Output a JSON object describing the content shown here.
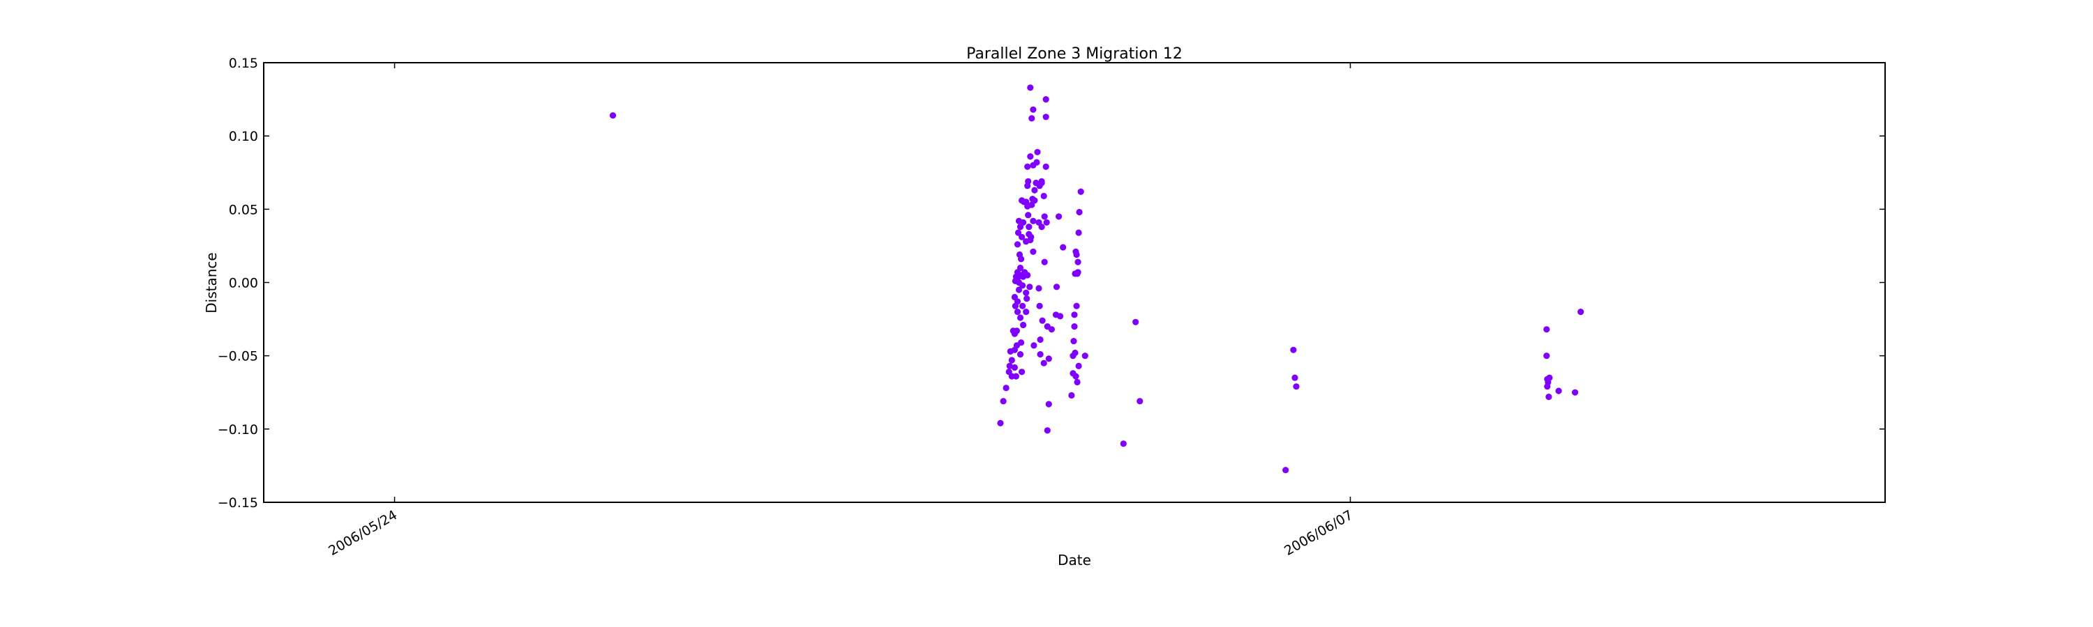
{
  "chart_data": {
    "type": "scatter",
    "title": "Parallel Zone 3 Migration 12",
    "xlabel": "Date",
    "ylabel": "Distance",
    "x_axis_type": "date",
    "xlim": [
      "2006-05-22T02:00",
      "2006-06-14T20:00"
    ],
    "ylim": [
      -0.15,
      0.15
    ],
    "y_ticks": [
      -0.15,
      -0.1,
      -0.05,
      0.0,
      0.05,
      0.1,
      0.15
    ],
    "y_tick_labels": [
      "−0.15",
      "−0.10",
      "−0.05",
      "0.00",
      "0.05",
      "0.10",
      "0.15"
    ],
    "x_ticks": [
      "2006-05-24",
      "2006-06-07"
    ],
    "x_tick_labels": [
      "2006/05/24",
      "2006/06/07"
    ],
    "grid": false,
    "marker_color": "#7f00ff",
    "points": [
      [
        "2006-05-27T04:45",
        0.114
      ],
      [
        "2006-06-01T21:00",
        -0.096
      ],
      [
        "2006-06-01T22:00",
        -0.081
      ],
      [
        "2006-06-01T23:00",
        -0.072
      ],
      [
        "2006-06-02T00:00",
        -0.061
      ],
      [
        "2006-06-02T00:15",
        -0.057
      ],
      [
        "2006-06-02T00:30",
        -0.047
      ],
      [
        "2006-06-02T01:00",
        -0.064
      ],
      [
        "2006-06-02T01:00",
        -0.053
      ],
      [
        "2006-06-02T01:30",
        -0.033
      ],
      [
        "2006-06-02T02:00",
        -0.058
      ],
      [
        "2006-06-02T02:00",
        -0.046
      ],
      [
        "2006-06-02T02:00",
        -0.035
      ],
      [
        "2006-06-02T02:00",
        -0.01
      ],
      [
        "2006-06-02T02:15",
        -0.016
      ],
      [
        "2006-06-02T02:15",
        0.001
      ],
      [
        "2006-06-02T02:30",
        0.004
      ],
      [
        "2006-06-02T02:30",
        -0.064
      ],
      [
        "2006-06-02T02:45",
        -0.043
      ],
      [
        "2006-06-02T02:45",
        -0.033
      ],
      [
        "2006-06-02T03:00",
        -0.02
      ],
      [
        "2006-06-02T03:00",
        -0.013
      ],
      [
        "2006-06-02T03:00",
        0.007
      ],
      [
        "2006-06-02T03:00",
        0.026
      ],
      [
        "2006-06-02T03:15",
        0.034
      ],
      [
        "2006-06-02T03:30",
        0.042
      ],
      [
        "2006-06-02T03:30",
        0.0
      ],
      [
        "2006-06-02T03:30",
        -0.005
      ],
      [
        "2006-06-02T03:30",
        0.004
      ],
      [
        "2006-06-02T03:45",
        0.019
      ],
      [
        "2006-06-02T04:00",
        -0.024
      ],
      [
        "2006-06-02T04:00",
        -0.049
      ],
      [
        "2006-06-02T04:00",
        0.01
      ],
      [
        "2006-06-02T04:00",
        0.038
      ],
      [
        "2006-06-02T04:15",
        -0.041
      ],
      [
        "2006-06-02T04:15",
        0.016
      ],
      [
        "2006-06-02T04:30",
        -0.061
      ],
      [
        "2006-06-02T04:30",
        0.056
      ],
      [
        "2006-06-02T04:30",
        0.031
      ],
      [
        "2006-06-02T04:30",
        0.005
      ],
      [
        "2006-06-02T04:45",
        -0.016
      ],
      [
        "2006-06-02T04:45",
        -0.002
      ],
      [
        "2006-06-02T05:00",
        0.004
      ],
      [
        "2006-06-02T05:00",
        0.041
      ],
      [
        "2006-06-02T05:00",
        -0.029
      ],
      [
        "2006-06-02T05:15",
        0.055
      ],
      [
        "2006-06-02T05:30",
        0.007
      ],
      [
        "2006-06-02T06:00",
        0.028
      ],
      [
        "2006-06-02T06:00",
        -0.02
      ],
      [
        "2006-06-02T06:00",
        0.055
      ],
      [
        "2006-06-02T06:00",
        -0.007
      ],
      [
        "2006-06-02T06:15",
        -0.011
      ],
      [
        "2006-06-02T06:30",
        0.005
      ],
      [
        "2006-06-02T06:30",
        0.052
      ],
      [
        "2006-06-02T06:30",
        0.066
      ],
      [
        "2006-06-02T06:30",
        0.079
      ],
      [
        "2006-06-02T06:45",
        0.046
      ],
      [
        "2006-06-02T06:45",
        0.069
      ],
      [
        "2006-06-02T07:00",
        0.033
      ],
      [
        "2006-06-02T07:00",
        0.038
      ],
      [
        "2006-06-02T07:15",
        -0.003
      ],
      [
        "2006-06-02T07:30",
        0.133
      ],
      [
        "2006-06-02T07:30",
        0.086
      ],
      [
        "2006-06-02T07:30",
        0.029
      ],
      [
        "2006-06-02T07:45",
        0.031
      ],
      [
        "2006-06-02T08:00",
        0.112
      ],
      [
        "2006-06-02T08:00",
        0.053
      ],
      [
        "2006-06-02T08:15",
        0.057
      ],
      [
        "2006-06-02T08:30",
        0.118
      ],
      [
        "2006-06-02T08:30",
        0.08
      ],
      [
        "2006-06-02T08:30",
        0.042
      ],
      [
        "2006-06-02T08:30",
        0.021
      ],
      [
        "2006-06-02T08:45",
        -0.043
      ],
      [
        "2006-06-02T09:00",
        0.063
      ],
      [
        "2006-06-02T09:00",
        0.056
      ],
      [
        "2006-06-02T09:30",
        0.068
      ],
      [
        "2006-06-02T09:45",
        0.082
      ],
      [
        "2006-06-02T10:00",
        0.089
      ],
      [
        "2006-06-02T10:30",
        -0.004
      ],
      [
        "2006-06-02T10:30",
        0.041
      ],
      [
        "2006-06-02T10:45",
        0.066
      ],
      [
        "2006-06-02T10:45",
        -0.016
      ],
      [
        "2006-06-02T11:00",
        -0.039
      ],
      [
        "2006-06-02T11:00",
        -0.049
      ],
      [
        "2006-06-02T11:30",
        0.069
      ],
      [
        "2006-06-02T11:30",
        0.068
      ],
      [
        "2006-06-02T11:30",
        0.038
      ],
      [
        "2006-06-02T11:45",
        -0.026
      ],
      [
        "2006-06-02T12:15",
        -0.055
      ],
      [
        "2006-06-02T12:15",
        0.059
      ],
      [
        "2006-06-02T12:30",
        0.014
      ],
      [
        "2006-06-02T12:30",
        0.045
      ],
      [
        "2006-06-02T13:00",
        0.125
      ],
      [
        "2006-06-02T13:00",
        0.113
      ],
      [
        "2006-06-02T13:00",
        0.079
      ],
      [
        "2006-06-02T13:15",
        0.041
      ],
      [
        "2006-06-02T13:30",
        -0.101
      ],
      [
        "2006-06-02T13:30",
        -0.03
      ],
      [
        "2006-06-02T14:00",
        -0.052
      ],
      [
        "2006-06-02T14:00",
        -0.083
      ],
      [
        "2006-06-02T15:00",
        -0.032
      ],
      [
        "2006-06-02T16:30",
        -0.022
      ],
      [
        "2006-06-02T16:45",
        -0.003
      ],
      [
        "2006-06-02T17:30",
        0.045
      ],
      [
        "2006-06-02T18:00",
        -0.023
      ],
      [
        "2006-06-02T19:00",
        0.024
      ],
      [
        "2006-06-02T22:00",
        -0.077
      ],
      [
        "2006-06-02T22:30",
        -0.062
      ],
      [
        "2006-06-02T22:30",
        -0.05
      ],
      [
        "2006-06-02T22:45",
        -0.04
      ],
      [
        "2006-06-02T23:00",
        -0.03
      ],
      [
        "2006-06-02T23:00",
        -0.022
      ],
      [
        "2006-06-02T23:15",
        -0.048
      ],
      [
        "2006-06-02T23:15",
        0.006
      ],
      [
        "2006-06-02T23:30",
        0.021
      ],
      [
        "2006-06-02T23:30",
        -0.064
      ],
      [
        "2006-06-02T23:45",
        0.019
      ],
      [
        "2006-06-02T23:45",
        -0.016
      ],
      [
        "2006-06-03T00:00",
        0.006
      ],
      [
        "2006-06-03T00:00",
        -0.068
      ],
      [
        "2006-06-03T00:15",
        0.014
      ],
      [
        "2006-06-03T00:15",
        0.007
      ],
      [
        "2006-06-03T00:30",
        -0.057
      ],
      [
        "2006-06-03T00:30",
        0.034
      ],
      [
        "2006-06-03T00:45",
        0.048
      ],
      [
        "2006-06-03T01:15",
        0.062
      ],
      [
        "2006-06-03T02:45",
        -0.05
      ],
      [
        "2006-06-03T16:15",
        -0.11
      ],
      [
        "2006-06-03T20:30",
        -0.027
      ],
      [
        "2006-06-03T22:00",
        -0.081
      ],
      [
        "2006-06-06T01:15",
        -0.128
      ],
      [
        "2006-06-06T04:00",
        -0.046
      ],
      [
        "2006-06-06T04:30",
        -0.065
      ],
      [
        "2006-06-06T05:00",
        -0.071
      ],
      [
        "2006-06-09T21:00",
        -0.032
      ],
      [
        "2006-06-09T21:00",
        -0.05
      ],
      [
        "2006-06-09T21:15",
        -0.066
      ],
      [
        "2006-06-09T21:15",
        -0.071
      ],
      [
        "2006-06-09T21:30",
        -0.068
      ],
      [
        "2006-06-09T21:45",
        -0.078
      ],
      [
        "2006-06-09T22:00",
        -0.065
      ],
      [
        "2006-06-10T01:15",
        -0.074
      ],
      [
        "2006-06-10T07:00",
        -0.075
      ],
      [
        "2006-06-10T09:00",
        -0.02
      ]
    ]
  }
}
